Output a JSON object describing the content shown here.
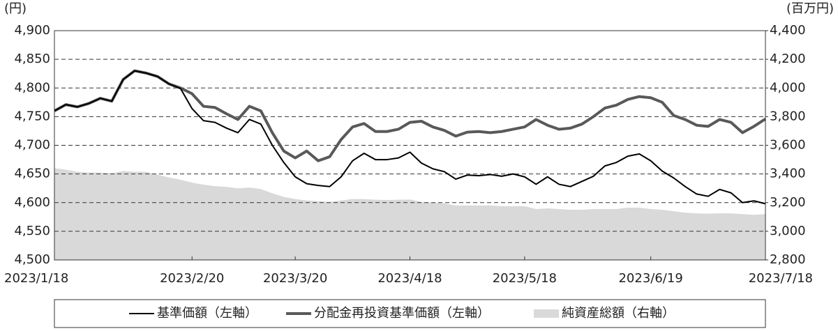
{
  "chart_data": {
    "type": "line",
    "y_unit_label": "(円)",
    "y2_unit_label": "(百万円)",
    "categories": [
      "2023/1/18",
      null,
      null,
      null,
      null,
      null,
      null,
      null,
      null,
      null,
      null,
      null,
      "2023/2/20",
      null,
      null,
      null,
      null,
      null,
      null,
      null,
      null,
      "2023/3/20",
      null,
      null,
      null,
      null,
      null,
      null,
      null,
      null,
      null,
      "2023/4/18",
      null,
      null,
      null,
      null,
      null,
      null,
      null,
      null,
      null,
      "2023/5/18",
      null,
      null,
      null,
      null,
      null,
      null,
      null,
      null,
      null,
      null,
      "2023/6/19",
      null,
      null,
      null,
      null,
      null,
      null,
      null,
      null,
      null,
      "2023/7/18"
    ],
    "series": [
      {
        "name": "純資産総額（右軸）",
        "color": "#d9d9d9",
        "axis": "y2",
        "type": "area",
        "values": [
          3440,
          3430,
          3415,
          3410,
          3410,
          3405,
          3420,
          3415,
          3415,
          3395,
          3375,
          3360,
          3340,
          3325,
          3315,
          3310,
          3300,
          3305,
          3295,
          3265,
          3240,
          3225,
          3215,
          3210,
          3205,
          3215,
          3225,
          3225,
          3220,
          3218,
          3220,
          3222,
          3205,
          3200,
          3195,
          3180,
          3180,
          3180,
          3180,
          3175,
          3175,
          3175,
          3155,
          3160,
          3155,
          3150,
          3150,
          3155,
          3155,
          3155,
          3165,
          3165,
          3155,
          3150,
          3140,
          3130,
          3125,
          3123,
          3125,
          3125,
          3120,
          3115,
          3120
        ]
      },
      {
        "name": "分配金再投資基準価額（左軸）",
        "color": "#595959",
        "type": "line",
        "values": [
          4760,
          4771,
          4767,
          4773,
          4782,
          4777,
          4815,
          4830,
          4826,
          4820,
          4807,
          4800,
          4790,
          4768,
          4766,
          4755,
          4745,
          4768,
          4760,
          4722,
          4690,
          4678,
          4690,
          4673,
          4680,
          4710,
          4732,
          4738,
          4724,
          4724,
          4728,
          4740,
          4742,
          4732,
          4726,
          4716,
          4723,
          4724,
          4722,
          4724,
          4728,
          4732,
          4745,
          4735,
          4728,
          4730,
          4737,
          4750,
          4765,
          4770,
          4780,
          4785,
          4783,
          4775,
          4752,
          4745,
          4735,
          4733,
          4745,
          4740,
          4722,
          4733,
          4746
        ]
      },
      {
        "name": "基準価額（左軸）",
        "color": "#000000",
        "type": "line",
        "values": [
          4760,
          4771,
          4767,
          4773,
          4782,
          4777,
          4815,
          4830,
          4826,
          4820,
          4807,
          4799,
          4764,
          4743,
          4740,
          4730,
          4722,
          4745,
          4737,
          4700,
          4670,
          4645,
          4633,
          4630,
          4628,
          4645,
          4673,
          4686,
          4675,
          4675,
          4678,
          4688,
          4669,
          4659,
          4654,
          4641,
          4648,
          4647,
          4649,
          4646,
          4650,
          4645,
          4632,
          4645,
          4632,
          4628,
          4637,
          4646,
          4664,
          4670,
          4681,
          4685,
          4673,
          4655,
          4643,
          4628,
          4615,
          4611,
          4623,
          4617,
          4600,
          4603,
          4598
        ]
      }
    ],
    "legend_order": [
      2,
      1,
      0
    ],
    "ylim": [
      4500,
      4900
    ],
    "yticks": [
      {
        "value": 4500,
        "label": "4,500"
      },
      {
        "value": 4550,
        "label": "4,550"
      },
      {
        "value": 4600,
        "label": "4,600"
      },
      {
        "value": 4650,
        "label": "4,650"
      },
      {
        "value": 4700,
        "label": "4,700"
      },
      {
        "value": 4750,
        "label": "4,750"
      },
      {
        "value": 4800,
        "label": "4,800"
      },
      {
        "value": 4850,
        "label": "4,850"
      },
      {
        "value": 4900,
        "label": "4,900"
      }
    ],
    "y2lim": [
      2800,
      4400
    ],
    "y2ticks": [
      {
        "value": 2800,
        "label": "2,800"
      },
      {
        "value": 3000,
        "label": "3,000"
      },
      {
        "value": 3200,
        "label": "3,200"
      },
      {
        "value": 3400,
        "label": "3,400"
      },
      {
        "value": 3600,
        "label": "3,600"
      },
      {
        "value": 3800,
        "label": "3,800"
      },
      {
        "value": 4000,
        "label": "4,000"
      },
      {
        "value": 4200,
        "label": "4,200"
      },
      {
        "value": 4400,
        "label": "4,400"
      }
    ],
    "grid": true
  }
}
